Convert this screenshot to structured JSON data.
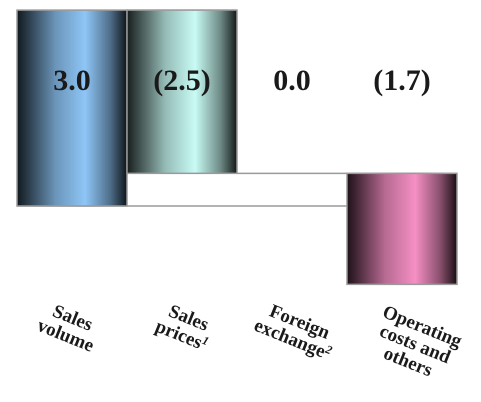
{
  "chart_data": {
    "type": "bar",
    "subtype": "waterfall",
    "categories": [
      {
        "label": "Sales volume",
        "lines": [
          "Sales",
          "volume"
        ],
        "footnote": ""
      },
      {
        "label": "Sales prices¹",
        "lines": [
          "Sales",
          "prices"
        ],
        "footnote": "1"
      },
      {
        "label": "Foreign exchange²",
        "lines": [
          "Foreign",
          "exchange"
        ],
        "footnote": "2"
      },
      {
        "label": "Operating costs and others",
        "lines": [
          "Operating",
          "costs and",
          "others"
        ],
        "footnote": ""
      }
    ],
    "values": [
      3.0,
      -2.5,
      0.0,
      -1.7
    ],
    "value_labels": [
      "3.0",
      "(2.5)",
      "0.0",
      "(1.7)"
    ],
    "colors": [
      "#8ec6f7",
      "#c8fbf4",
      "#d8d8d8",
      "#f58fc4"
    ],
    "title": "",
    "xlabel": "",
    "ylabel": "",
    "grid": false,
    "legend": "none"
  }
}
